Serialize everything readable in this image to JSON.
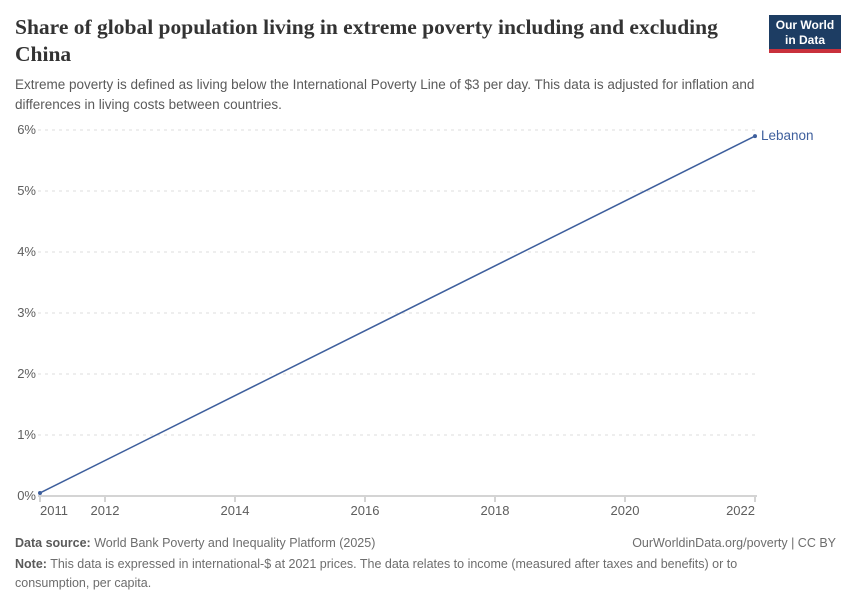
{
  "header": {
    "title": "Share of global population living in extreme poverty including and excluding China",
    "subtitle": "Extreme poverty is defined as living below the International Poverty Line of $3 per day. This data is adjusted for inflation and differences in living costs between countries.",
    "logo": {
      "line1": "Our World",
      "line2": "in Data"
    }
  },
  "chart_data": {
    "type": "line",
    "title": "Share of global population living in extreme poverty including and excluding China",
    "xlabel": "",
    "ylabel": "",
    "xlim": [
      2011,
      2022
    ],
    "ylim": [
      0,
      6
    ],
    "grid": "horizontal dashed gridlines",
    "legend_position": "label at end of line",
    "x_ticks": [
      2011,
      2012,
      2014,
      2016,
      2018,
      2020,
      2022
    ],
    "y_ticks": [
      {
        "value": 0,
        "label": "0%"
      },
      {
        "value": 1,
        "label": "1%"
      },
      {
        "value": 2,
        "label": "2%"
      },
      {
        "value": 3,
        "label": "3%"
      },
      {
        "value": 4,
        "label": "4%"
      },
      {
        "value": 5,
        "label": "5%"
      },
      {
        "value": 6,
        "label": "6%"
      }
    ],
    "series": [
      {
        "name": "Lebanon",
        "color": "#3e5f9d",
        "points": [
          {
            "x": 2011,
            "y": 0.05
          },
          {
            "x": 2022,
            "y": 5.9
          }
        ]
      }
    ]
  },
  "footer": {
    "data_source_label": "Data source:",
    "data_source_value": "World Bank Poverty and Inequality Platform (2025)",
    "attribution": "OurWorldinData.org/poverty | CC BY",
    "note_label": "Note:",
    "note_value": "This data is expressed in international-$ at 2021 prices. The data relates to income (measured after taxes and benefits) or to consumption, per capita."
  },
  "colors": {
    "line": "#3e5f9d",
    "grid": "#dcdcdc",
    "axis": "#a8a8a8",
    "tick_label": "#5e5e5e",
    "title": "#333333",
    "subtitle": "#5a5a5a",
    "footer": "#6d6d6d",
    "logo_bg": "#1d3d63",
    "logo_stripe": "#c9313c"
  }
}
